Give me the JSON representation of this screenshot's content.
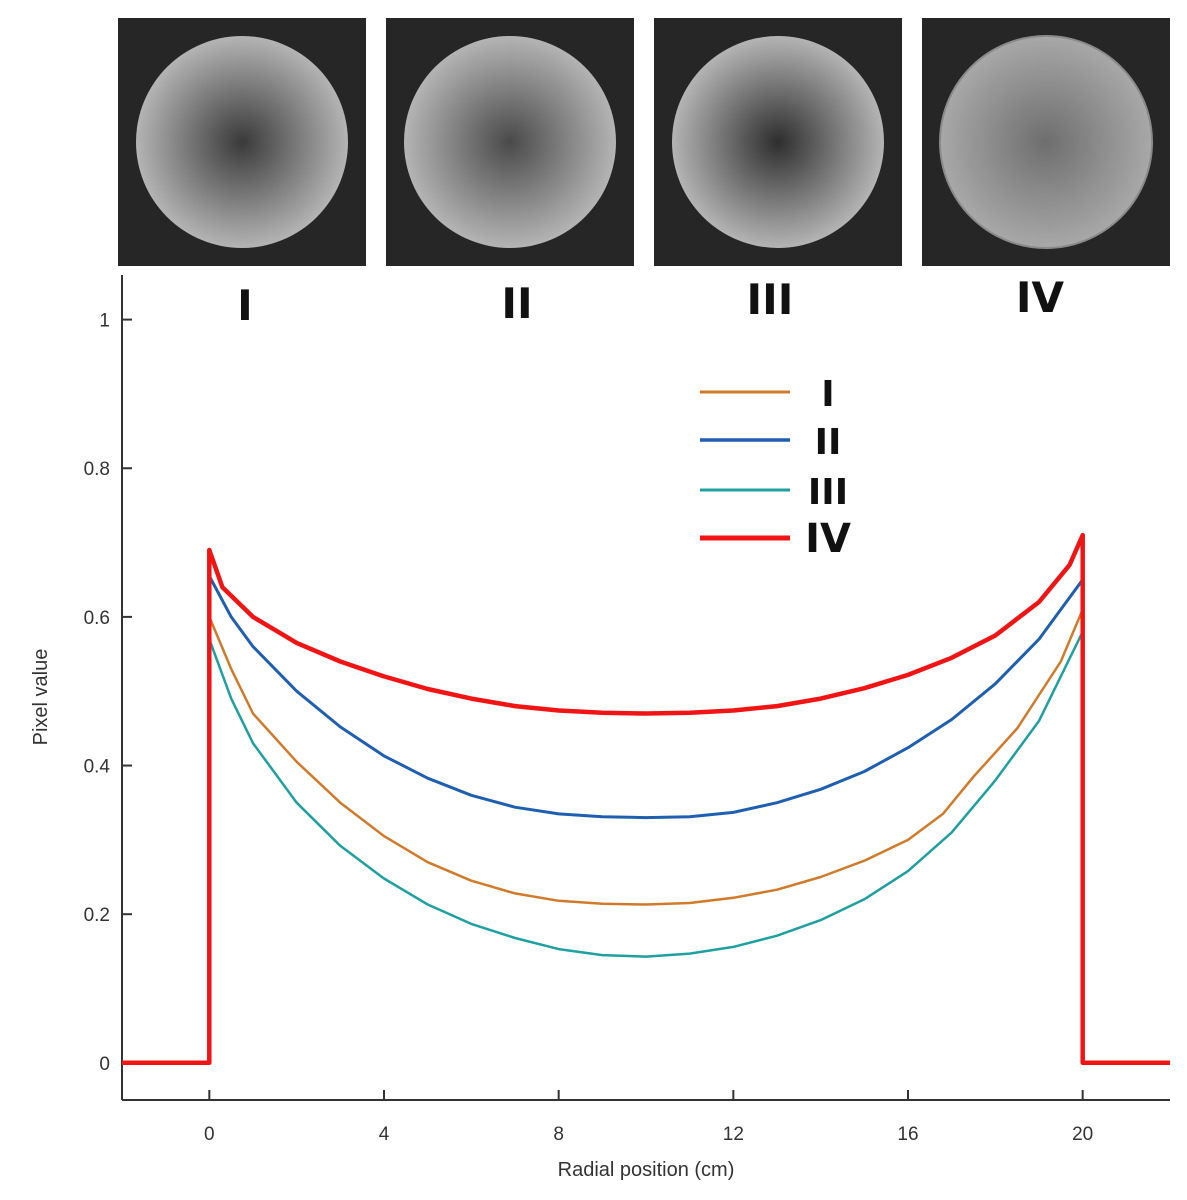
{
  "panels": [
    {
      "label": "I",
      "center_shade": "#3a3a3a",
      "edge_shade": "#b4b4b4"
    },
    {
      "label": "II",
      "center_shade": "#4a4a4a",
      "edge_shade": "#b4b4b4"
    },
    {
      "label": "III",
      "center_shade": "#2e2e2e",
      "edge_shade": "#b4b4b4"
    },
    {
      "label": "IV",
      "center_shade": "#6e6e6e",
      "edge_shade": "#a8a8a8"
    }
  ],
  "chart_data": {
    "type": "line",
    "title": "",
    "xlabel": "Radial position (cm)",
    "ylabel": "Pixel value",
    "xlim": [
      -2,
      22
    ],
    "ylim": [
      -0.05,
      1.06
    ],
    "xticks": [
      0,
      4,
      8,
      12,
      16,
      20
    ],
    "yticks": [
      0,
      0.2,
      0.4,
      0.6,
      0.8,
      1
    ],
    "ytick_labels": [
      "0",
      "0.2",
      "0.4",
      "0.6",
      "0.8",
      "1"
    ],
    "grid": false,
    "legend": "top-right",
    "series": [
      {
        "name": "I",
        "color": "#d07a2a",
        "x": [
          -2,
          0,
          0,
          0.5,
          1,
          2,
          3,
          4,
          5,
          6,
          7,
          8,
          9,
          10,
          11,
          12,
          13,
          14,
          15,
          16,
          16.8,
          17.5,
          18.5,
          19.5,
          20,
          20,
          22
        ],
        "y": [
          0,
          0,
          0.6,
          0.53,
          0.47,
          0.405,
          0.35,
          0.305,
          0.27,
          0.245,
          0.228,
          0.218,
          0.214,
          0.213,
          0.215,
          0.222,
          0.233,
          0.25,
          0.272,
          0.3,
          0.335,
          0.385,
          0.45,
          0.54,
          0.61,
          0,
          0
        ]
      },
      {
        "name": "II",
        "color": "#1f5fb0",
        "x": [
          -2,
          0,
          0,
          0.5,
          1,
          2,
          3,
          4,
          5,
          6,
          7,
          8,
          9,
          10,
          11,
          12,
          13,
          14,
          15,
          16,
          17,
          18,
          19,
          19.5,
          20,
          20,
          22
        ],
        "y": [
          0,
          0,
          0.655,
          0.6,
          0.56,
          0.5,
          0.452,
          0.413,
          0.383,
          0.36,
          0.344,
          0.335,
          0.331,
          0.33,
          0.331,
          0.337,
          0.35,
          0.368,
          0.392,
          0.424,
          0.462,
          0.51,
          0.57,
          0.61,
          0.65,
          0,
          0
        ]
      },
      {
        "name": "III",
        "color": "#1fa0a0",
        "x": [
          -2,
          0,
          0,
          0.5,
          1,
          2,
          3,
          4,
          5,
          6,
          7,
          8,
          9,
          10,
          11,
          12,
          13,
          14,
          15,
          16,
          17,
          18,
          19,
          19.5,
          20,
          20,
          22
        ],
        "y": [
          0,
          0,
          0.57,
          0.49,
          0.43,
          0.35,
          0.292,
          0.248,
          0.213,
          0.187,
          0.168,
          0.153,
          0.145,
          0.143,
          0.147,
          0.156,
          0.171,
          0.192,
          0.22,
          0.258,
          0.31,
          0.38,
          0.46,
          0.52,
          0.58,
          0,
          0
        ]
      },
      {
        "name": "IV",
        "color": "#f01414",
        "x": [
          -2,
          0,
          0,
          0.3,
          1,
          2,
          3,
          4,
          5,
          6,
          7,
          8,
          9,
          10,
          11,
          12,
          13,
          14,
          15,
          16,
          17,
          18,
          19,
          19.7,
          20,
          20,
          22
        ],
        "y": [
          0,
          0,
          0.69,
          0.64,
          0.6,
          0.565,
          0.54,
          0.52,
          0.503,
          0.49,
          0.48,
          0.474,
          0.471,
          0.47,
          0.471,
          0.474,
          0.48,
          0.49,
          0.504,
          0.522,
          0.545,
          0.575,
          0.62,
          0.67,
          0.71,
          0,
          0
        ]
      }
    ]
  }
}
